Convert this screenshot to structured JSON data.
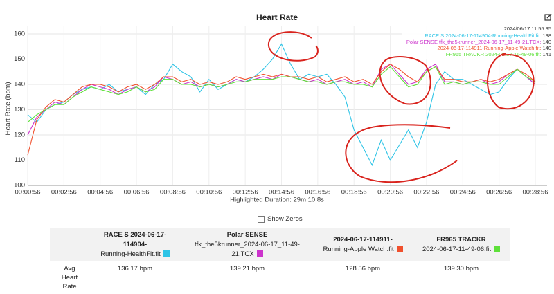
{
  "chart_data": {
    "type": "line",
    "title": "Heart Rate",
    "y_label": "Heart Rate (bpm)",
    "x_note": "Highlighted Duration: 29m 10.8s",
    "categories": [
      "00:00:56",
      null,
      null,
      null,
      "00:02:56",
      null,
      null,
      null,
      "00:04:56",
      null,
      null,
      null,
      "00:06:56",
      null,
      null,
      null,
      "00:08:56",
      null,
      null,
      null,
      "00:10:56",
      null,
      null,
      null,
      "00:12:56",
      null,
      null,
      null,
      "00:14:56",
      null,
      null,
      null,
      "00:16:56",
      null,
      null,
      null,
      "00:18:56",
      null,
      null,
      null,
      "00:20:56",
      null,
      null,
      null,
      "00:22:56",
      null,
      null,
      null,
      "00:24:56",
      null,
      null,
      null,
      "00:26:56",
      null,
      null,
      null,
      "00:28:56"
    ],
    "ylim": [
      100,
      163
    ],
    "yticks": [
      100,
      110,
      120,
      130,
      140,
      150,
      160
    ],
    "grid": true,
    "series": [
      {
        "name": "RACE S 2024-06-17-114904-Running-HealthFit.fit",
        "color": "#2ec4e6",
        "values": [
          128,
          125,
          130,
          132,
          133,
          136,
          138,
          139,
          138,
          140,
          137,
          138,
          139,
          136,
          140,
          142,
          148,
          145,
          143,
          137,
          142,
          138,
          140,
          142,
          141,
          143,
          146,
          150,
          156,
          148,
          142,
          144,
          143,
          144,
          140,
          135,
          122,
          115,
          108,
          118,
          110,
          116,
          122,
          115,
          125,
          140,
          145,
          142,
          142,
          140,
          138,
          136,
          137,
          142,
          146,
          143,
          140
        ]
      },
      {
        "name": "Polar SENSE tfk_the5krunner_2024-06-17_11-49-21.TCX",
        "color": "#cc33cc",
        "values": [
          120,
          127,
          130,
          133,
          132,
          135,
          138,
          140,
          139,
          138,
          136,
          138,
          139,
          137,
          139,
          143,
          142,
          140,
          141,
          139,
          140,
          139,
          140,
          142,
          141,
          142,
          143,
          142,
          144,
          143,
          142,
          141,
          142,
          140,
          141,
          142,
          140,
          141,
          139,
          146,
          148,
          144,
          140,
          141,
          146,
          148,
          141,
          141,
          140,
          141,
          142,
          140,
          141,
          144,
          146,
          143,
          140
        ]
      },
      {
        "name": "2024-06-17-114911-Running-Apple Watch.fit",
        "color": "#f0502d",
        "values": [
          112,
          126,
          131,
          134,
          133,
          136,
          139,
          140,
          140,
          139,
          137,
          139,
          140,
          138,
          140,
          143,
          143,
          141,
          142,
          140,
          141,
          140,
          141,
          143,
          142,
          143,
          144,
          143,
          144,
          143,
          143,
          142,
          143,
          141,
          142,
          143,
          141,
          142,
          140,
          145,
          148,
          146,
          143,
          141,
          145,
          147,
          142,
          142,
          141,
          141,
          142,
          141,
          142,
          144,
          146,
          144,
          141
        ]
      },
      {
        "name": "FR965 TRACKR 2024-06-17-11-49-06.fit",
        "color": "#5ee03a",
        "values": [
          125,
          128,
          130,
          132,
          132,
          135,
          137,
          139,
          138,
          137,
          136,
          137,
          139,
          137,
          138,
          142,
          142,
          140,
          140,
          139,
          140,
          139,
          140,
          141,
          141,
          142,
          142,
          142,
          143,
          143,
          142,
          141,
          141,
          140,
          141,
          141,
          140,
          140,
          139,
          144,
          147,
          143,
          139,
          140,
          145,
          147,
          140,
          141,
          140,
          141,
          141,
          140,
          140,
          143,
          146,
          143,
          141
        ]
      }
    ],
    "tooltip": {
      "title": "2024/06/17 11:55:35",
      "items": [
        {
          "label": "RACE S 2024-06-17-114904-Running-HealthFit.fit:",
          "value": 138,
          "color": "#2ec4e6"
        },
        {
          "label": "Polar SENSE tfk_the5krunner_2024-06-17_11-49-21.TCX:",
          "value": 140,
          "color": "#cc33cc"
        },
        {
          "label": "2024-06-17-114911-Running-Apple Watch.fit:",
          "value": 140,
          "color": "#f0502d"
        },
        {
          "label": "FR965 TRACKR 2024-06-17-11-49-06.fit:",
          "value": 141,
          "color": "#5ee03a"
        }
      ]
    }
  },
  "controls": {
    "show_zeros": "Show Zeros"
  },
  "table": {
    "columns": [
      {
        "lines": [
          "RACE S 2024-06-17-114904-",
          "Running-HealthFit.fit"
        ],
        "color": "#2ec4e6"
      },
      {
        "lines": [
          "Polar SENSE",
          "tfk_the5krunner_2024-06-17_11-49-21.TCX"
        ],
        "color": "#cc33cc"
      },
      {
        "lines": [
          "2024-06-17-114911-",
          "Running-Apple Watch.fit"
        ],
        "color": "#f0502d"
      },
      {
        "lines": [
          "FR965 TRACKR",
          "2024-06-17-11-49-06.fit"
        ],
        "color": "#5ee03a"
      }
    ],
    "rows": [
      {
        "label": [
          "Avg",
          "Heart",
          "Rate"
        ],
        "cells": [
          "136.17 bpm",
          "139.21 bpm",
          "128.56 bpm",
          "139.30 bpm"
        ]
      }
    ]
  }
}
